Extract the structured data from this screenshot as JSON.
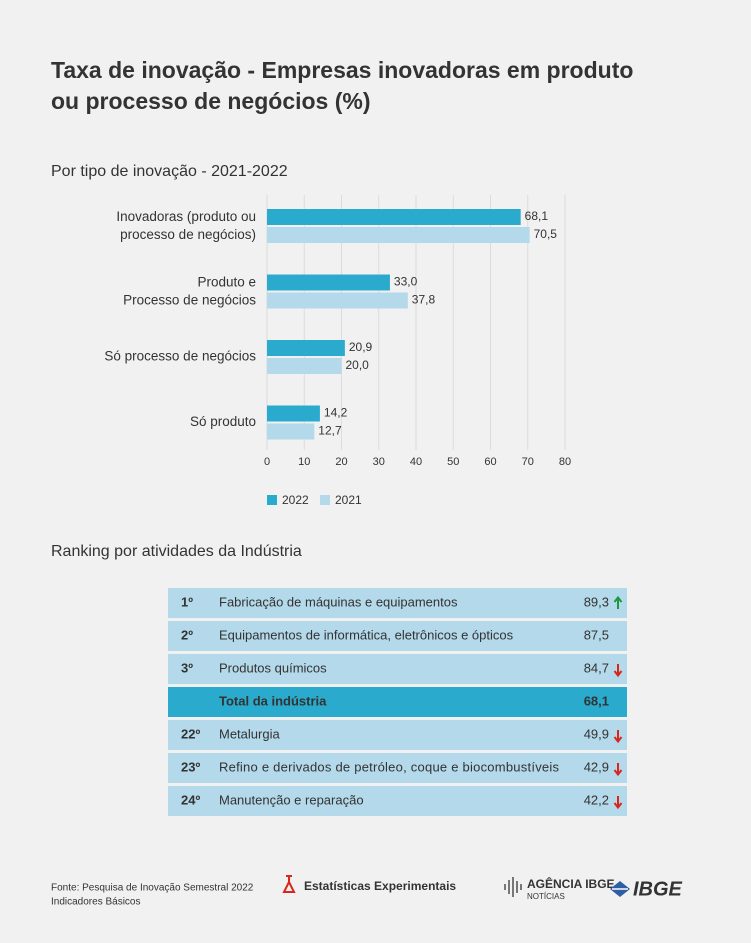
{
  "title": "Taxa de inovação - Empresas inovadoras em produto\nou processo de negócios (%)",
  "chart_data": {
    "type": "bar",
    "orientation": "horizontal",
    "subtitle": "Por tipo de inovação - 2021-2022",
    "categories": [
      "Inovadoras (produto ou\nprocesso de negócios)",
      "Produto e\nProcesso de negócios",
      "Só processo de negócios",
      "Só produto"
    ],
    "series": [
      {
        "name": "2022",
        "color": "#2aaacc",
        "values": [
          68.1,
          33.0,
          20.9,
          14.2
        ],
        "value_labels": [
          "68,1",
          "33,0",
          "20,9",
          "14,2"
        ]
      },
      {
        "name": "2021",
        "color": "#b3d9ea",
        "values": [
          70.5,
          37.8,
          20.0,
          12.7
        ],
        "value_labels": [
          "70,5",
          "37,8",
          "20,0",
          "12,7"
        ]
      }
    ],
    "xlim": [
      0,
      80
    ],
    "xticks": [
      0,
      10,
      20,
      30,
      40,
      50,
      60,
      70,
      80
    ],
    "grid": true,
    "legend": "bottom"
  },
  "ranking": {
    "title": "Ranking por atividades da Indústria",
    "rows": [
      {
        "rank": "1º",
        "name": "Fabricação de máquinas e equipamentos",
        "value": "89,3",
        "trend": "up"
      },
      {
        "rank": "2º",
        "name": "Equipamentos de informática, eletrônicos e ópticos",
        "value": "87,5",
        "trend": null
      },
      {
        "rank": "3º",
        "name": "Produtos químicos",
        "value": "84,7",
        "trend": "down"
      },
      {
        "rank": null,
        "name": "Total da indústria",
        "value": "68,1",
        "trend": null
      },
      {
        "rank": "22º",
        "name": "Metalurgia",
        "value": "49,9",
        "trend": "down"
      },
      {
        "rank": "23º",
        "name": "Refino e derivados de petróleo, coque e biocombustíveis",
        "value": "42,9",
        "trend": "down"
      },
      {
        "rank": "24º",
        "name": "Manutenção e reparação",
        "value": "42,2",
        "trend": "down"
      }
    ]
  },
  "footer": {
    "source": "Fonte: Pesquisa de Inovação Semestral 2022",
    "source_line2": "Indicadores Básicos",
    "experimental": "Estatísticas Experimentais",
    "agencia": "AGÊNCIA IBGE",
    "noticias": "NOTÍCIAS",
    "ibge": "IBGE"
  }
}
